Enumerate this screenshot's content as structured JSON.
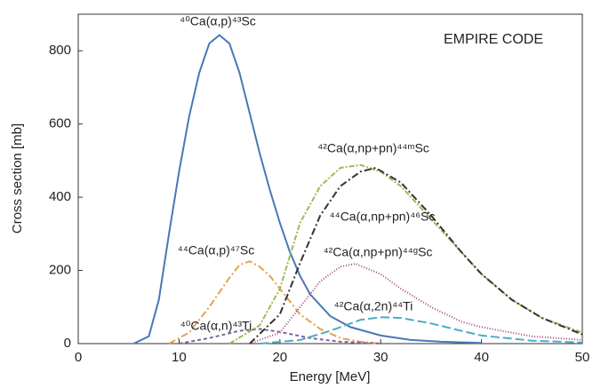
{
  "chart_data": {
    "type": "line",
    "xlabel": "Energy [MeV]",
    "ylabel": "Cross section  [mb]",
    "annotations": [
      "EMPIRE CODE"
    ],
    "xlim": [
      0,
      50
    ],
    "xticks": [
      0,
      10,
      20,
      30,
      40,
      50
    ],
    "ylim": [
      0,
      900
    ],
    "yticks": [
      0,
      200,
      400,
      600,
      800
    ],
    "grid": false,
    "series": [
      {
        "name": "⁴⁰Ca(α,p)⁴³Sc",
        "color": "#4a78b5",
        "dash": "none",
        "x": [
          5.5,
          7,
          8,
          9,
          10,
          11,
          12,
          13,
          14,
          15,
          16,
          17,
          18,
          19,
          20,
          21,
          22,
          23,
          25,
          27,
          30,
          33,
          36,
          40
        ],
        "values": [
          0,
          20,
          120,
          300,
          470,
          620,
          740,
          820,
          843,
          820,
          740,
          630,
          520,
          420,
          330,
          250,
          185,
          135,
          75,
          45,
          22,
          10,
          5,
          2
        ]
      },
      {
        "name": "⁴⁴Ca(α,p)⁴⁷Sc",
        "color": "#e8a050",
        "dash": "8 3 2 3",
        "x": [
          9,
          11,
          13,
          15,
          16,
          17,
          18,
          19,
          20,
          22,
          24,
          26,
          28,
          30
        ],
        "values": [
          0,
          30,
          100,
          180,
          215,
          225,
          210,
          185,
          150,
          80,
          40,
          15,
          5,
          0
        ]
      },
      {
        "name": "⁴⁰Ca(α,n)⁴³Ti",
        "color": "#8064a2",
        "dash": "4 3",
        "x": [
          10,
          13,
          16,
          18,
          20,
          23,
          26,
          30
        ],
        "values": [
          0,
          15,
          35,
          40,
          32,
          15,
          5,
          0
        ]
      },
      {
        "name": "⁴²Ca(α,np+pn)⁴⁴ᵐSc",
        "color": "#9bbb59",
        "dash": "6 2 2 2",
        "x": [
          15,
          18,
          20,
          22,
          24,
          26,
          28,
          30,
          32,
          35,
          38,
          40,
          43,
          46,
          50
        ],
        "values": [
          0,
          50,
          150,
          330,
          430,
          480,
          488,
          470,
          430,
          340,
          250,
          190,
          120,
          70,
          30
        ]
      },
      {
        "name": "⁴⁴Ca(α,np+pn)⁴⁶Sc",
        "color": "#333333",
        "dash": "8 3 2 3",
        "x": [
          17,
          20,
          22,
          24,
          26,
          28,
          29.5,
          32,
          35,
          38,
          40,
          43,
          46,
          50
        ],
        "values": [
          0,
          80,
          220,
          350,
          430,
          470,
          480,
          440,
          350,
          250,
          190,
          120,
          70,
          25
        ]
      },
      {
        "name": "⁴²Ca(α,np+pn)⁴⁴ᵍSc",
        "color": "#a04a80",
        "dash": "1 2",
        "x": [
          17,
          20,
          22,
          24,
          26,
          27.5,
          30,
          32,
          35,
          38,
          40,
          45,
          50
        ],
        "values": [
          0,
          30,
          100,
          170,
          210,
          218,
          190,
          150,
          100,
          60,
          45,
          20,
          10
        ]
      },
      {
        "name": "⁴²Ca(α,2n)⁴⁴Ti",
        "color": "#4bacc6",
        "dash": "10 4",
        "x": [
          18,
          22,
          25,
          28,
          30,
          32,
          35,
          38,
          40,
          45,
          50
        ],
        "values": [
          0,
          10,
          35,
          65,
          72,
          70,
          55,
          35,
          22,
          8,
          3
        ]
      }
    ]
  }
}
